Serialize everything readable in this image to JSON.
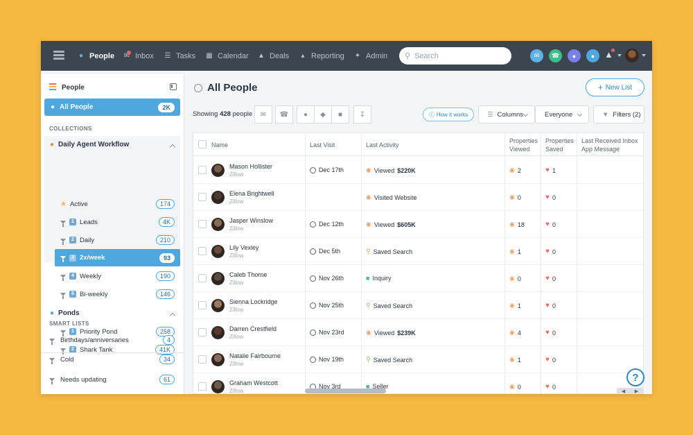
{
  "nav": {
    "items": [
      {
        "label": "People",
        "icon": "person-icon",
        "active": true
      },
      {
        "label": "Inbox",
        "icon": "inbox-icon"
      },
      {
        "label": "Tasks",
        "icon": "tasks-icon"
      },
      {
        "label": "Calendar",
        "icon": "calendar-icon"
      },
      {
        "label": "Deals",
        "icon": "deals-icon"
      },
      {
        "label": "Reporting",
        "icon": "reporting-icon"
      },
      {
        "label": "Admin",
        "icon": "wrench-icon"
      }
    ],
    "search_placeholder": "Search"
  },
  "sidebar": {
    "title": "People",
    "all_people": {
      "label": "All People",
      "count": "2K"
    },
    "collections_label": "COLLECTIONS",
    "workflow": {
      "label": "Daily Agent Workflow",
      "items": [
        {
          "label": "Active",
          "count": "174"
        },
        {
          "label": "Leads",
          "num": "1",
          "count": "4K"
        },
        {
          "label": "Daily",
          "num": "2",
          "count": "210"
        },
        {
          "label": "2x/week",
          "num": "3",
          "count": "93"
        },
        {
          "label": "Weekly",
          "num": "4",
          "count": "190"
        },
        {
          "label": "Bi-weekly",
          "num": "5",
          "count": "146"
        }
      ]
    },
    "ponds": {
      "label": "Ponds",
      "items": [
        {
          "label": "Priority Pond",
          "num": "1",
          "count": "258"
        },
        {
          "label": "Shark Tank",
          "num": "2",
          "count": "41K"
        }
      ]
    },
    "smart_label": "SMART LISTS",
    "smart": [
      {
        "label": "Birthdays/anniversaries",
        "count": "4"
      },
      {
        "label": "Cold",
        "count": "34"
      },
      {
        "label": "Needs updating",
        "count": "61"
      }
    ]
  },
  "main": {
    "title": "All People",
    "new_list": "New List",
    "showing_prefix": "Showing",
    "showing_count": "428",
    "showing_suffix": "people",
    "how_it_works": "How it works",
    "columns": "Columns",
    "everyone": "Everyone",
    "filters": "Filters (2)"
  },
  "table": {
    "headers": [
      "Name",
      "Last Visit",
      "Last Activity",
      "Properties Viewed",
      "Properties Saved",
      "Last Received Inbox App Message"
    ],
    "rows": [
      {
        "name": "Mason Hollister",
        "source": "Zillow",
        "visit": "Dec 17th",
        "activity": "Viewed",
        "amount": "$220K",
        "act": "viewed",
        "viewed": "2",
        "saved": "1"
      },
      {
        "name": "Elena Brightwell",
        "source": "Zillow",
        "visit": "",
        "activity": "Visited Website",
        "amount": "",
        "act": "visited",
        "viewed": "0",
        "saved": "0"
      },
      {
        "name": "Jasper Winslow",
        "source": "Zillow",
        "visit": "Dec 12th",
        "activity": "Viewed",
        "amount": "$605K",
        "act": "viewed",
        "viewed": "18",
        "saved": "0"
      },
      {
        "name": "Lily Vexley",
        "source": "Zillow",
        "visit": "Dec 5th",
        "activity": "Saved Search",
        "amount": "",
        "act": "search",
        "viewed": "1",
        "saved": "0"
      },
      {
        "name": "Caleb Thorne",
        "source": "Zillow",
        "visit": "Nov 26th",
        "activity": "Inquiry",
        "amount": "",
        "act": "inquiry",
        "viewed": "0",
        "saved": "0"
      },
      {
        "name": "Sienna Lockridge",
        "source": "Zillow",
        "visit": "Nov 25th",
        "activity": "Saved Search",
        "amount": "",
        "act": "search",
        "viewed": "1",
        "saved": "0"
      },
      {
        "name": "Darren Crestfield",
        "source": "Zillow",
        "visit": "Nov 23rd",
        "activity": "Viewed",
        "amount": "$239K",
        "act": "viewed",
        "viewed": "4",
        "saved": "0"
      },
      {
        "name": "Natalie Fairbourne",
        "source": "Zillow",
        "visit": "Nov 19th",
        "activity": "Saved Search",
        "amount": "",
        "act": "search",
        "viewed": "1",
        "saved": "0"
      },
      {
        "name": "Graham Westcott",
        "source": "Zillow",
        "visit": "Nov 3rd",
        "activity": "Seller",
        "amount": "",
        "act": "inquiry",
        "viewed": "0",
        "saved": "0"
      }
    ]
  },
  "help_label": "?",
  "colors": {
    "accent": "#4fa8dd",
    "nav": "#3b4650",
    "background": "#F5B942"
  }
}
